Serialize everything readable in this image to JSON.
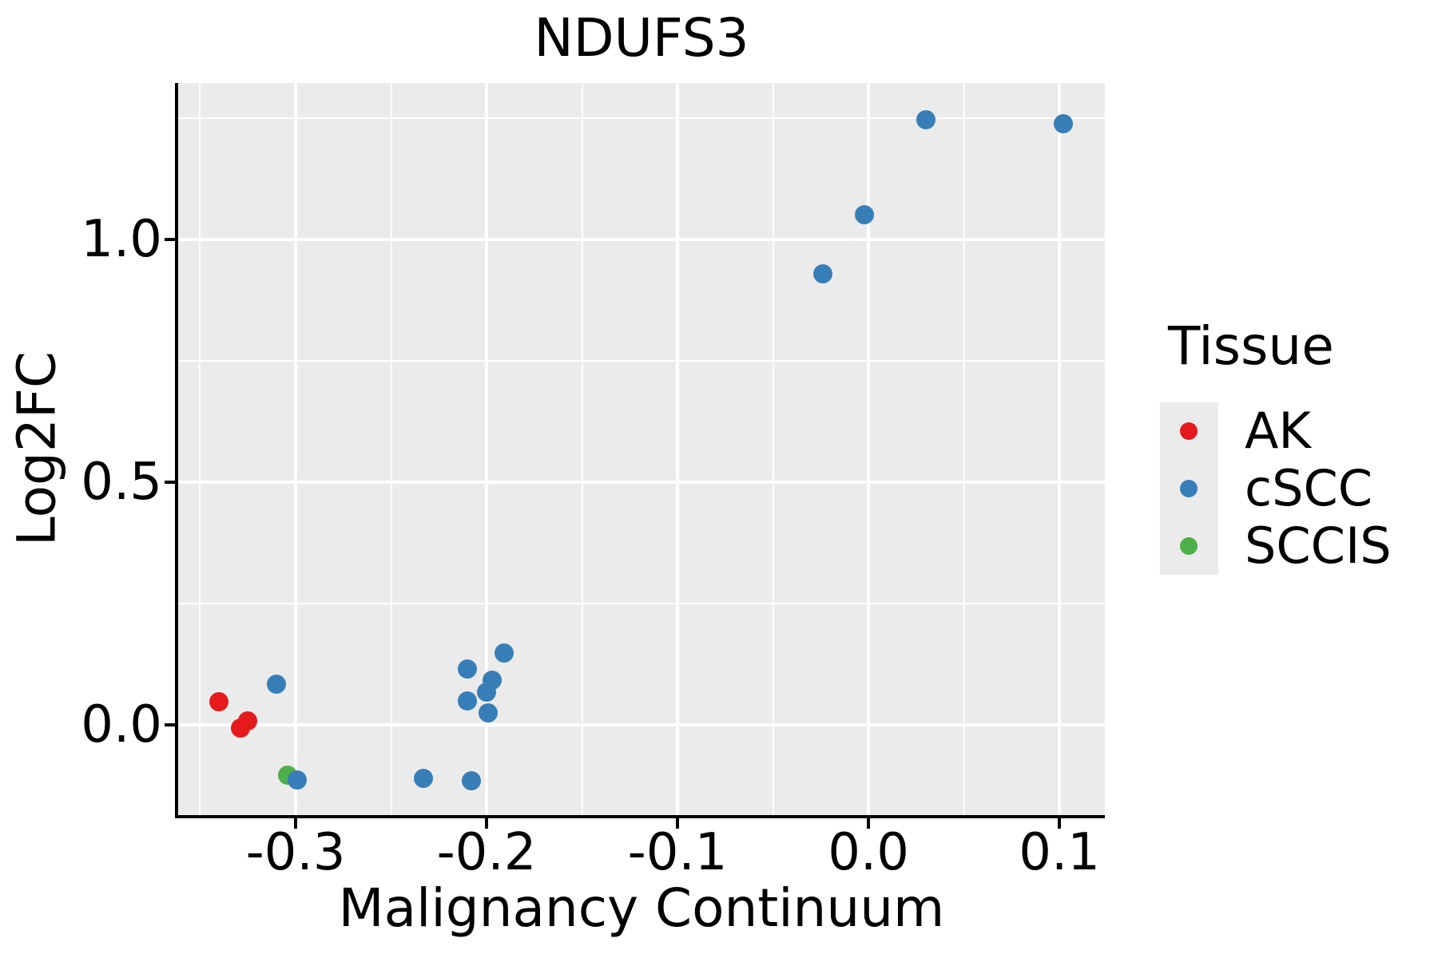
{
  "title": "NDUFS3",
  "axes": {
    "x": {
      "label": "Malignancy Continuum",
      "tick_labels": [
        "-0.3",
        "-0.2",
        "-0.1",
        "0.0",
        "0.1"
      ],
      "tick_values": [
        -0.3,
        -0.2,
        -0.1,
        0.0,
        0.1
      ],
      "minor_values": [
        -0.35,
        -0.25,
        -0.15,
        -0.05,
        0.05
      ],
      "range": [
        -0.3615,
        0.1238
      ]
    },
    "y": {
      "label": "Log2FC",
      "tick_labels": [
        "0.0",
        "0.5",
        "1.0"
      ],
      "tick_values": [
        0.0,
        0.5,
        1.0
      ],
      "minor_values": [
        0.25,
        0.75,
        1.25
      ],
      "range": [
        -0.186,
        1.322
      ]
    }
  },
  "legend": {
    "title": "Tissue",
    "entries": [
      {
        "label": "AK",
        "color": "#E41A1C"
      },
      {
        "label": "cSCC",
        "color": "#377EB8"
      },
      {
        "label": "SCCIS",
        "color": "#4DAF4A"
      }
    ]
  },
  "chart_data": {
    "type": "scatter",
    "title": "NDUFS3",
    "xlabel": "Malignancy Continuum",
    "ylabel": "Log2FC",
    "xlim": [
      -0.3615,
      0.1238
    ],
    "ylim": [
      -0.186,
      1.322
    ],
    "grid": true,
    "legend_position": "right",
    "series": [
      {
        "name": "AK",
        "color": "#E41A1C",
        "points": [
          [
            -0.34,
            0.048
          ],
          [
            -0.329,
            -0.007
          ],
          [
            -0.325,
            0.008
          ]
        ]
      },
      {
        "name": "cSCC",
        "color": "#377EB8",
        "points": [
          [
            -0.31,
            0.084
          ],
          [
            -0.299,
            -0.113
          ],
          [
            -0.233,
            -0.111
          ],
          [
            -0.208,
            -0.116
          ],
          [
            -0.21,
            0.115
          ],
          [
            -0.191,
            0.148
          ],
          [
            -0.197,
            0.092
          ],
          [
            -0.2,
            0.068
          ],
          [
            -0.21,
            0.049
          ],
          [
            -0.199,
            0.025
          ],
          [
            -0.024,
            0.929
          ],
          [
            -0.002,
            1.051
          ],
          [
            0.03,
            1.247
          ],
          [
            0.102,
            1.238
          ]
        ]
      },
      {
        "name": "SCCIS",
        "color": "#4DAF4A",
        "points": [
          [
            -0.304,
            -0.103
          ]
        ]
      }
    ]
  },
  "colors": {
    "panel_background": "#EBEBEB",
    "gridline": "#FFFFFF",
    "axis": "#000000",
    "text": "#000000"
  }
}
